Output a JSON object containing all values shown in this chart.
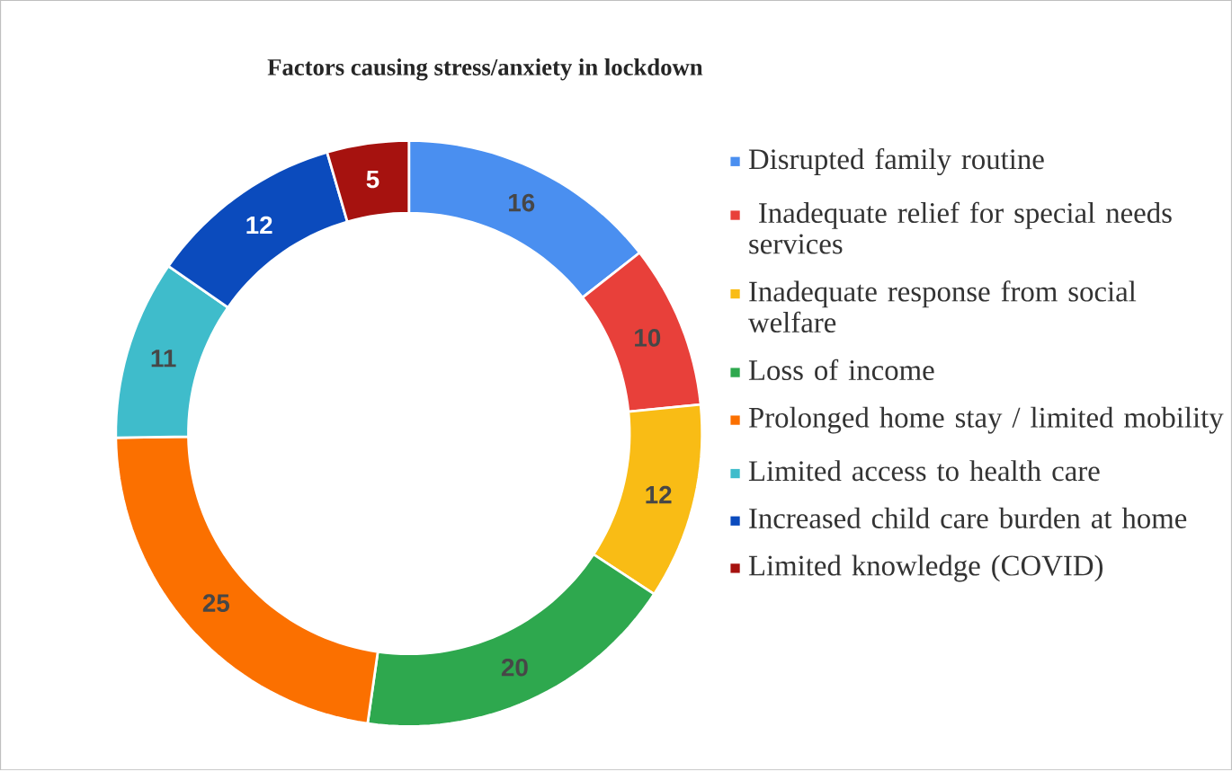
{
  "chart_data": {
    "type": "donut",
    "title": "Factors causing stress/anxiety in lockdown",
    "categories": [
      "Disrupted family routine",
      " Inadequate relief for special needs services",
      "Inadequate response from social welfare",
      "Loss of income",
      "Prolonged home stay / limited mobility",
      "Limited access to health care",
      "Increased child care burden at home",
      "Limited knowledge (COVID)"
    ],
    "values": [
      16,
      10,
      12,
      20,
      25,
      11,
      12,
      5
    ],
    "colors": [
      "#4a8ff0",
      "#e8403a",
      "#f9bc15",
      "#2ea84e",
      "#fb7000",
      "#3fbccb",
      "#0b4bbd",
      "#a6120f"
    ],
    "data_labels": true,
    "legend": "right"
  }
}
